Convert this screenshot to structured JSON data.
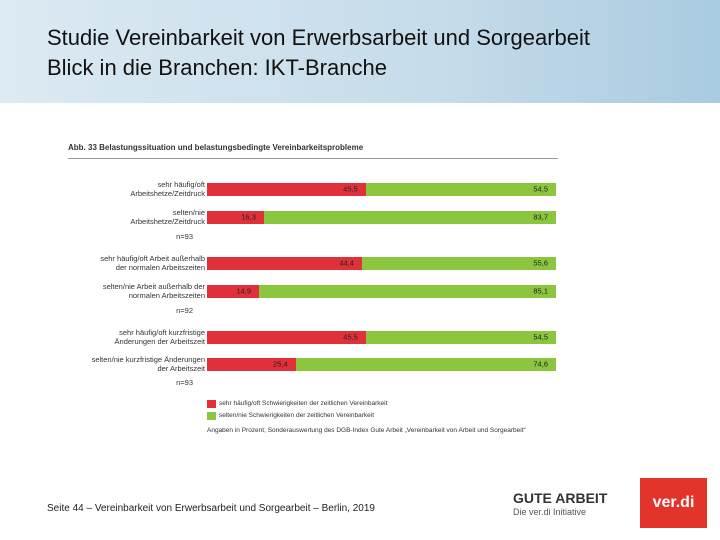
{
  "header": {
    "title": "Studie Vereinbarkeit von Erwerbsarbeit und Sorgearbeit",
    "subtitle": "Blick in die Branchen: IKT-Branche"
  },
  "chart_data": {
    "type": "stacked-bar-horizontal",
    "title": "Abb. 33  Belastungssituation und belastungsbedingte Vereinbarkeitsprobleme",
    "categories": [
      "sehr häufig/oft\nArbeitshetze/Zeitdruck",
      "selten/nie\nArbeitshetze/Zeitdruck",
      "sehr häufig/oft Arbeit außerhalb\nder normalen Arbeitszeiten",
      "selten/nie Arbeit außerhalb der\nnormalen Arbeitszeiten",
      "sehr häufig/oft kurzfristige\nÄnderungen der Arbeitszeit",
      "selten/nie kurzfristige Änderungen\nder Arbeitszeit"
    ],
    "group_notes": [
      "n=93",
      "n=92",
      "n=93"
    ],
    "xlim": [
      0,
      100
    ],
    "series": [
      {
        "name": "sehr häufig/oft Schwierigkeiten der zeitlichen Vereinbarkeit",
        "color": "#e0313b",
        "values": [
          45.5,
          16.3,
          44.4,
          14.9,
          45.5,
          25.4
        ],
        "value_labels": [
          "45,5",
          "16,3",
          "44,4",
          "14,9",
          "45,5",
          "25,4"
        ]
      },
      {
        "name": "selten/nie Schwierigkeiten der zeitlichen Vereinbarkeit",
        "color": "#8cc63e",
        "values": [
          54.5,
          83.7,
          55.6,
          85.1,
          54.5,
          74.6
        ],
        "value_labels": [
          "54,5",
          "83,7",
          "55,6",
          "85,1",
          "54,5",
          "74,6"
        ]
      }
    ],
    "note": "Angaben in Prozent; Sonderauswertung des DGB-Index Gute Arbeit „Vereinbarkeit von Arbeit und Sorgearbeit“"
  },
  "footer": {
    "text": "Seite 44 – Vereinbarkeit von Erwerbsarbeit und Sorgearbeit – Berlin, 2019",
    "logo_main": "GUTE ARBEIT",
    "logo_sub": "Die ver.di Initiative",
    "logo_verdi": "ver.di"
  }
}
